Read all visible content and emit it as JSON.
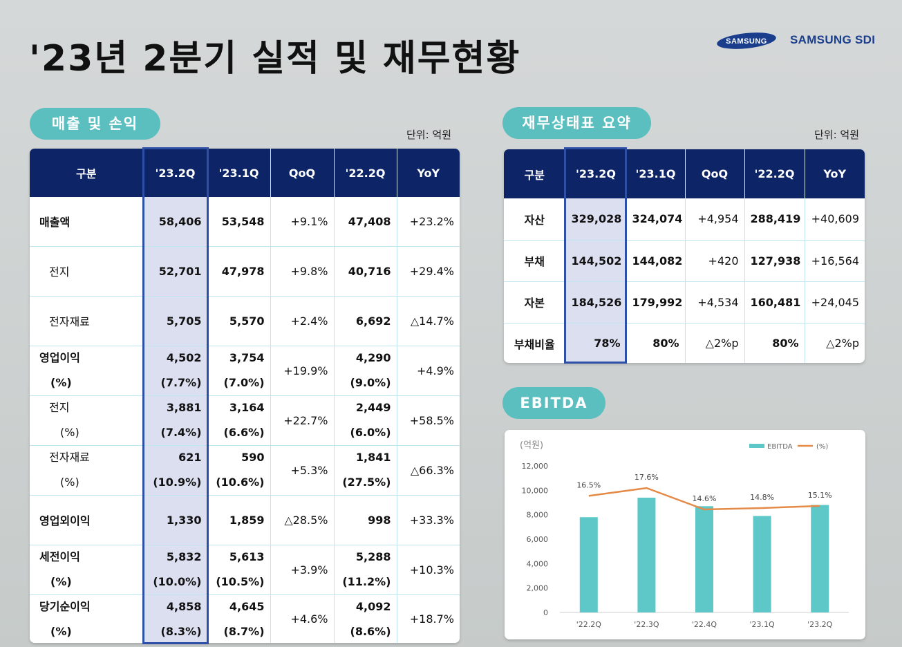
{
  "title": "'23년 2분기 실적 및 재무현황",
  "logo": {
    "samsung": "SAMSUNG",
    "sdi": "SAMSUNG SDI"
  },
  "pl": {
    "pill": "매출 및 손익",
    "unit": "단위: 억원",
    "headers": [
      "구분",
      "'23.2Q",
      "'23.1Q",
      "QoQ",
      "'22.2Q",
      "YoY"
    ],
    "rows": [
      {
        "label": "매출액",
        "label_pct": "",
        "bold": true,
        "indent": false,
        "q232": "58,406",
        "q232_pct": "",
        "q231": "53,548",
        "q231_pct": "",
        "qoq": "+9.1%",
        "q222": "47,408",
        "q222_pct": "",
        "yoy": "+23.2%"
      },
      {
        "label": "전지",
        "label_pct": "",
        "bold": false,
        "indent": true,
        "q232": "52,701",
        "q232_pct": "",
        "q231": "47,978",
        "q231_pct": "",
        "qoq": "+9.8%",
        "q222": "40,716",
        "q222_pct": "",
        "yoy": "+29.4%"
      },
      {
        "label": "전자재료",
        "label_pct": "",
        "bold": false,
        "indent": true,
        "q232": "5,705",
        "q232_pct": "",
        "q231": "5,570",
        "q231_pct": "",
        "qoq": "+2.4%",
        "q222": "6,692",
        "q222_pct": "",
        "yoy": "△14.7%"
      },
      {
        "label": "영업이익",
        "label_pct": "(%)",
        "bold": true,
        "indent": false,
        "q232": "4,502",
        "q232_pct": "(7.7%)",
        "q231": "3,754",
        "q231_pct": "(7.0%)",
        "qoq": "+19.9%",
        "q222": "4,290",
        "q222_pct": "(9.0%)",
        "yoy": "+4.9%"
      },
      {
        "label": "전지",
        "label_pct": "(%)",
        "bold": false,
        "indent": true,
        "q232": "3,881",
        "q232_pct": "(7.4%)",
        "q231": "3,164",
        "q231_pct": "(6.6%)",
        "qoq": "+22.7%",
        "q222": "2,449",
        "q222_pct": "(6.0%)",
        "yoy": "+58.5%"
      },
      {
        "label": "전자재료",
        "label_pct": "(%)",
        "bold": false,
        "indent": true,
        "q232": "621",
        "q232_pct": "(10.9%)",
        "q231": "590",
        "q231_pct": "(10.6%)",
        "qoq": "+5.3%",
        "q222": "1,841",
        "q222_pct": "(27.5%)",
        "yoy": "△66.3%"
      },
      {
        "label": "영업외이익",
        "label_pct": "",
        "bold": true,
        "indent": false,
        "q232": "1,330",
        "q232_pct": "",
        "q231": "1,859",
        "q231_pct": "",
        "qoq": "△28.5%",
        "q222": "998",
        "q222_pct": "",
        "yoy": "+33.3%"
      },
      {
        "label": "세전이익",
        "label_pct": "(%)",
        "bold": true,
        "indent": false,
        "q232": "5,832",
        "q232_pct": "(10.0%)",
        "q231": "5,613",
        "q231_pct": "(10.5%)",
        "qoq": "+3.9%",
        "q222": "5,288",
        "q222_pct": "(11.2%)",
        "yoy": "+10.3%"
      },
      {
        "label": "당기순이익",
        "label_pct": "(%)",
        "bold": true,
        "indent": false,
        "q232": "4,858",
        "q232_pct": "(8.3%)",
        "q231": "4,645",
        "q231_pct": "(8.7%)",
        "qoq": "+4.6%",
        "q222": "4,092",
        "q222_pct": "(8.6%)",
        "yoy": "+18.7%"
      }
    ]
  },
  "bs": {
    "pill": "재무상태표 요약",
    "unit": "단위: 억원",
    "headers": [
      "구분",
      "'23.2Q",
      "'23.1Q",
      "QoQ",
      "'22.2Q",
      "YoY"
    ],
    "rows": [
      {
        "label": "자산",
        "q232": "329,028",
        "q231": "324,074",
        "qoq": "+4,954",
        "q222": "288,419",
        "yoy": "+40,609"
      },
      {
        "label": "부채",
        "q232": "144,502",
        "q231": "144,082",
        "qoq": "+420",
        "q222": "127,938",
        "yoy": "+16,564"
      },
      {
        "label": "자본",
        "q232": "184,526",
        "q231": "179,992",
        "qoq": "+4,534",
        "q222": "160,481",
        "yoy": "+24,045"
      },
      {
        "label": "부채비율",
        "q232": "78%",
        "q231": "80%",
        "qoq": "△2%p",
        "q222": "80%",
        "yoy": "△2%p"
      }
    ]
  },
  "ebitda": {
    "pill": "EBITDA"
  },
  "colors": {
    "navy": "#0d2566",
    "teal": "#5bbfc0",
    "bar": "#5ec8c8",
    "line": "#e58a46",
    "highlight": "#dcdff0",
    "highlight_border": "#2d4fa5"
  },
  "chart_data": {
    "type": "bar",
    "categories": [
      "'22.2Q",
      "'22.3Q",
      "'22.4Q",
      "'23.1Q",
      "'23.2Q"
    ],
    "ylabel": "(억원)",
    "ylim": [
      0,
      12000
    ],
    "yticks": [
      "12,000",
      "10,000",
      "8,000",
      "6,000",
      "4,000",
      "2,000",
      "0"
    ],
    "series": [
      {
        "name": "EBITDA",
        "type": "bar",
        "values": [
          7800,
          9400,
          8700,
          7900,
          8800
        ]
      },
      {
        "name": "(%)",
        "type": "line",
        "values": [
          16.5,
          17.6,
          14.6,
          14.8,
          15.1
        ],
        "labels": [
          "16.5%",
          "17.6%",
          "14.6%",
          "14.8%",
          "15.1%"
        ]
      }
    ],
    "legend": "top-right",
    "grid": false
  }
}
